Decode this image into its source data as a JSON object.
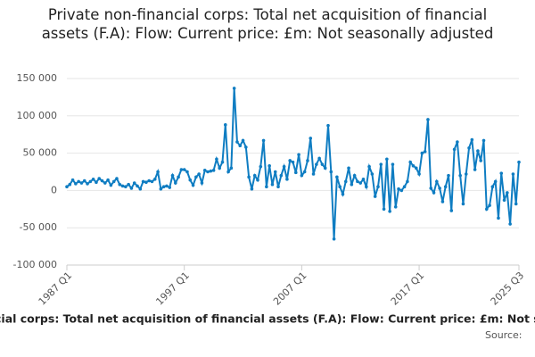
{
  "chart_data": {
    "type": "line",
    "title": "Private non-financial corps: Total net acquisition of financial assets (F.A): Flow: Current price: £m: Not seasonally adjusted",
    "caption": "cial corps: Total net acquisition of financial assets (F.A): Flow: Current price: £m: Not s",
    "source": "Source:",
    "categories": [
      "1987 Q1",
      null,
      null,
      null,
      null,
      null,
      null,
      null,
      null,
      null,
      null,
      null,
      null,
      null,
      null,
      null,
      null,
      null,
      null,
      null,
      null,
      null,
      null,
      null,
      null,
      null,
      null,
      null,
      null,
      null,
      null,
      null,
      null,
      null,
      null,
      null,
      null,
      null,
      null,
      null,
      "1997 Q1",
      null,
      null,
      null,
      null,
      null,
      null,
      null,
      null,
      null,
      null,
      null,
      null,
      null,
      null,
      null,
      null,
      null,
      null,
      null,
      null,
      null,
      null,
      null,
      null,
      null,
      null,
      null,
      null,
      null,
      null,
      null,
      null,
      null,
      null,
      null,
      null,
      null,
      null,
      null,
      "2007 Q1",
      null,
      null,
      null,
      null,
      null,
      null,
      null,
      null,
      null,
      null,
      null,
      null,
      null,
      null,
      null,
      null,
      null,
      null,
      null,
      null,
      null,
      null,
      null,
      null,
      null,
      null,
      null,
      null,
      null,
      null,
      null,
      null,
      null,
      null,
      null,
      null,
      null,
      null,
      null,
      "2017 Q1",
      null,
      null,
      null,
      null,
      null,
      null,
      null,
      null,
      null,
      null,
      null,
      null,
      null,
      null,
      null,
      null,
      null,
      null,
      null,
      null,
      null,
      null,
      null,
      null,
      null,
      null,
      null,
      null,
      null,
      null,
      null,
      null,
      null,
      "2025 Q3"
    ],
    "series": [
      {
        "name": "Private non-financial corps",
        "color": "#0f7dc2",
        "values": [
          5000,
          8000,
          14000,
          9000,
          12000,
          10000,
          13000,
          9000,
          12000,
          15000,
          11000,
          16000,
          13000,
          10000,
          14000,
          7000,
          12000,
          16000,
          8000,
          6000,
          5000,
          8000,
          3000,
          10000,
          6000,
          2000,
          12000,
          11000,
          13000,
          12000,
          15000,
          25000,
          2000,
          5000,
          6000,
          4000,
          20000,
          10000,
          18000,
          28000,
          28000,
          25000,
          14000,
          7000,
          18000,
          22000,
          10000,
          27000,
          25000,
          26000,
          27000,
          42000,
          30000,
          38000,
          88000,
          25000,
          30000,
          137000,
          65000,
          60000,
          67000,
          58000,
          18000,
          2000,
          20000,
          14000,
          32000,
          67000,
          5000,
          33000,
          8000,
          25000,
          5000,
          20000,
          32000,
          15000,
          40000,
          38000,
          24000,
          48000,
          20000,
          25000,
          40000,
          70000,
          22000,
          35000,
          43000,
          35000,
          30000,
          87000,
          25000,
          -65000,
          18000,
          5000,
          -5000,
          12000,
          30000,
          8000,
          20000,
          12000,
          10000,
          15000,
          5000,
          32000,
          22000,
          -8000,
          5000,
          35000,
          -25000,
          42000,
          -28000,
          35000,
          -22000,
          2000,
          0,
          5000,
          12000,
          38000,
          33000,
          30000,
          22000,
          50000,
          52000,
          95000,
          3000,
          -3000,
          12000,
          3000,
          -15000,
          5000,
          20000,
          -27000,
          55000,
          65000,
          20000,
          -18000,
          22000,
          57000,
          68000,
          28000,
          53000,
          40000,
          67000,
          -25000,
          -20000,
          5000,
          12000,
          -37000,
          23000,
          -13000,
          -3000,
          -45000,
          22000,
          -18000,
          38000
        ]
      }
    ],
    "ylim": [
      -100000,
      150000
    ],
    "yticks": [
      {
        "value": -100000,
        "label": "-100 000"
      },
      {
        "value": -50000,
        "label": "-50 000"
      },
      0,
      {
        "value": 50000,
        "label": "50 000"
      },
      {
        "value": 100000,
        "label": "100 000"
      },
      {
        "value": 150000,
        "label": "150 000"
      }
    ],
    "grid": true
  }
}
